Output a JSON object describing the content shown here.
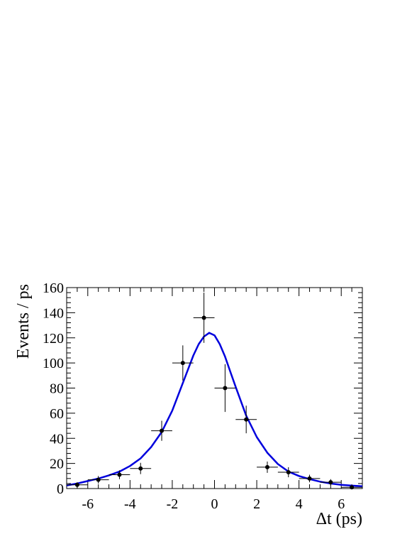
{
  "chart_data": {
    "type": "scatter",
    "title": "",
    "xlabel": "Δt (ps)",
    "ylabel": "Events / ps",
    "xlim": [
      -7,
      7
    ],
    "ylim": [
      0,
      160
    ],
    "x_ticks": [
      -6,
      -4,
      -2,
      0,
      2,
      4,
      6
    ],
    "y_ticks": [
      0,
      20,
      40,
      60,
      80,
      100,
      120,
      140,
      160
    ],
    "grid": false,
    "colors": {
      "fit": "#0000dd",
      "data": "#000000"
    },
    "series": [
      {
        "kind": "data-points-with-errors",
        "x": [
          -6.5,
          -5.5,
          -4.5,
          -3.5,
          -2.5,
          -1.5,
          -0.5,
          0.5,
          1.5,
          2.5,
          3.5,
          4.5,
          5.5,
          6.5
        ],
        "x_err": [
          0.5,
          0.5,
          0.5,
          0.5,
          0.5,
          0.5,
          0.5,
          0.5,
          0.5,
          0.5,
          0.5,
          0.5,
          0.5,
          0.5
        ],
        "y": [
          3,
          7,
          11,
          16,
          46,
          100,
          136,
          80,
          55,
          17,
          13,
          8,
          5,
          1
        ],
        "y_err": [
          2,
          3,
          3.5,
          4.5,
          8,
          14,
          20,
          19,
          11,
          4.5,
          4,
          3,
          2.5,
          1
        ]
      },
      {
        "kind": "fit-curve",
        "x": [
          -7,
          -6.5,
          -6,
          -5.5,
          -5,
          -4.5,
          -4,
          -3.5,
          -3,
          -2.5,
          -2,
          -1.5,
          -1,
          -0.75,
          -0.5,
          -0.25,
          0,
          0.25,
          0.5,
          0.75,
          1,
          1.5,
          2,
          2.5,
          3,
          3.5,
          4,
          4.5,
          5,
          5.5,
          6,
          6.5,
          7
        ],
        "y": [
          2.5,
          4,
          6,
          8,
          10.5,
          13.5,
          18,
          24,
          33,
          45,
          62,
          84,
          106,
          115,
          121,
          124,
          122,
          115,
          105,
          93,
          81,
          58,
          41,
          28.5,
          19.5,
          13.5,
          10,
          7.5,
          5.5,
          4,
          3,
          2.3,
          1.8
        ]
      }
    ]
  }
}
